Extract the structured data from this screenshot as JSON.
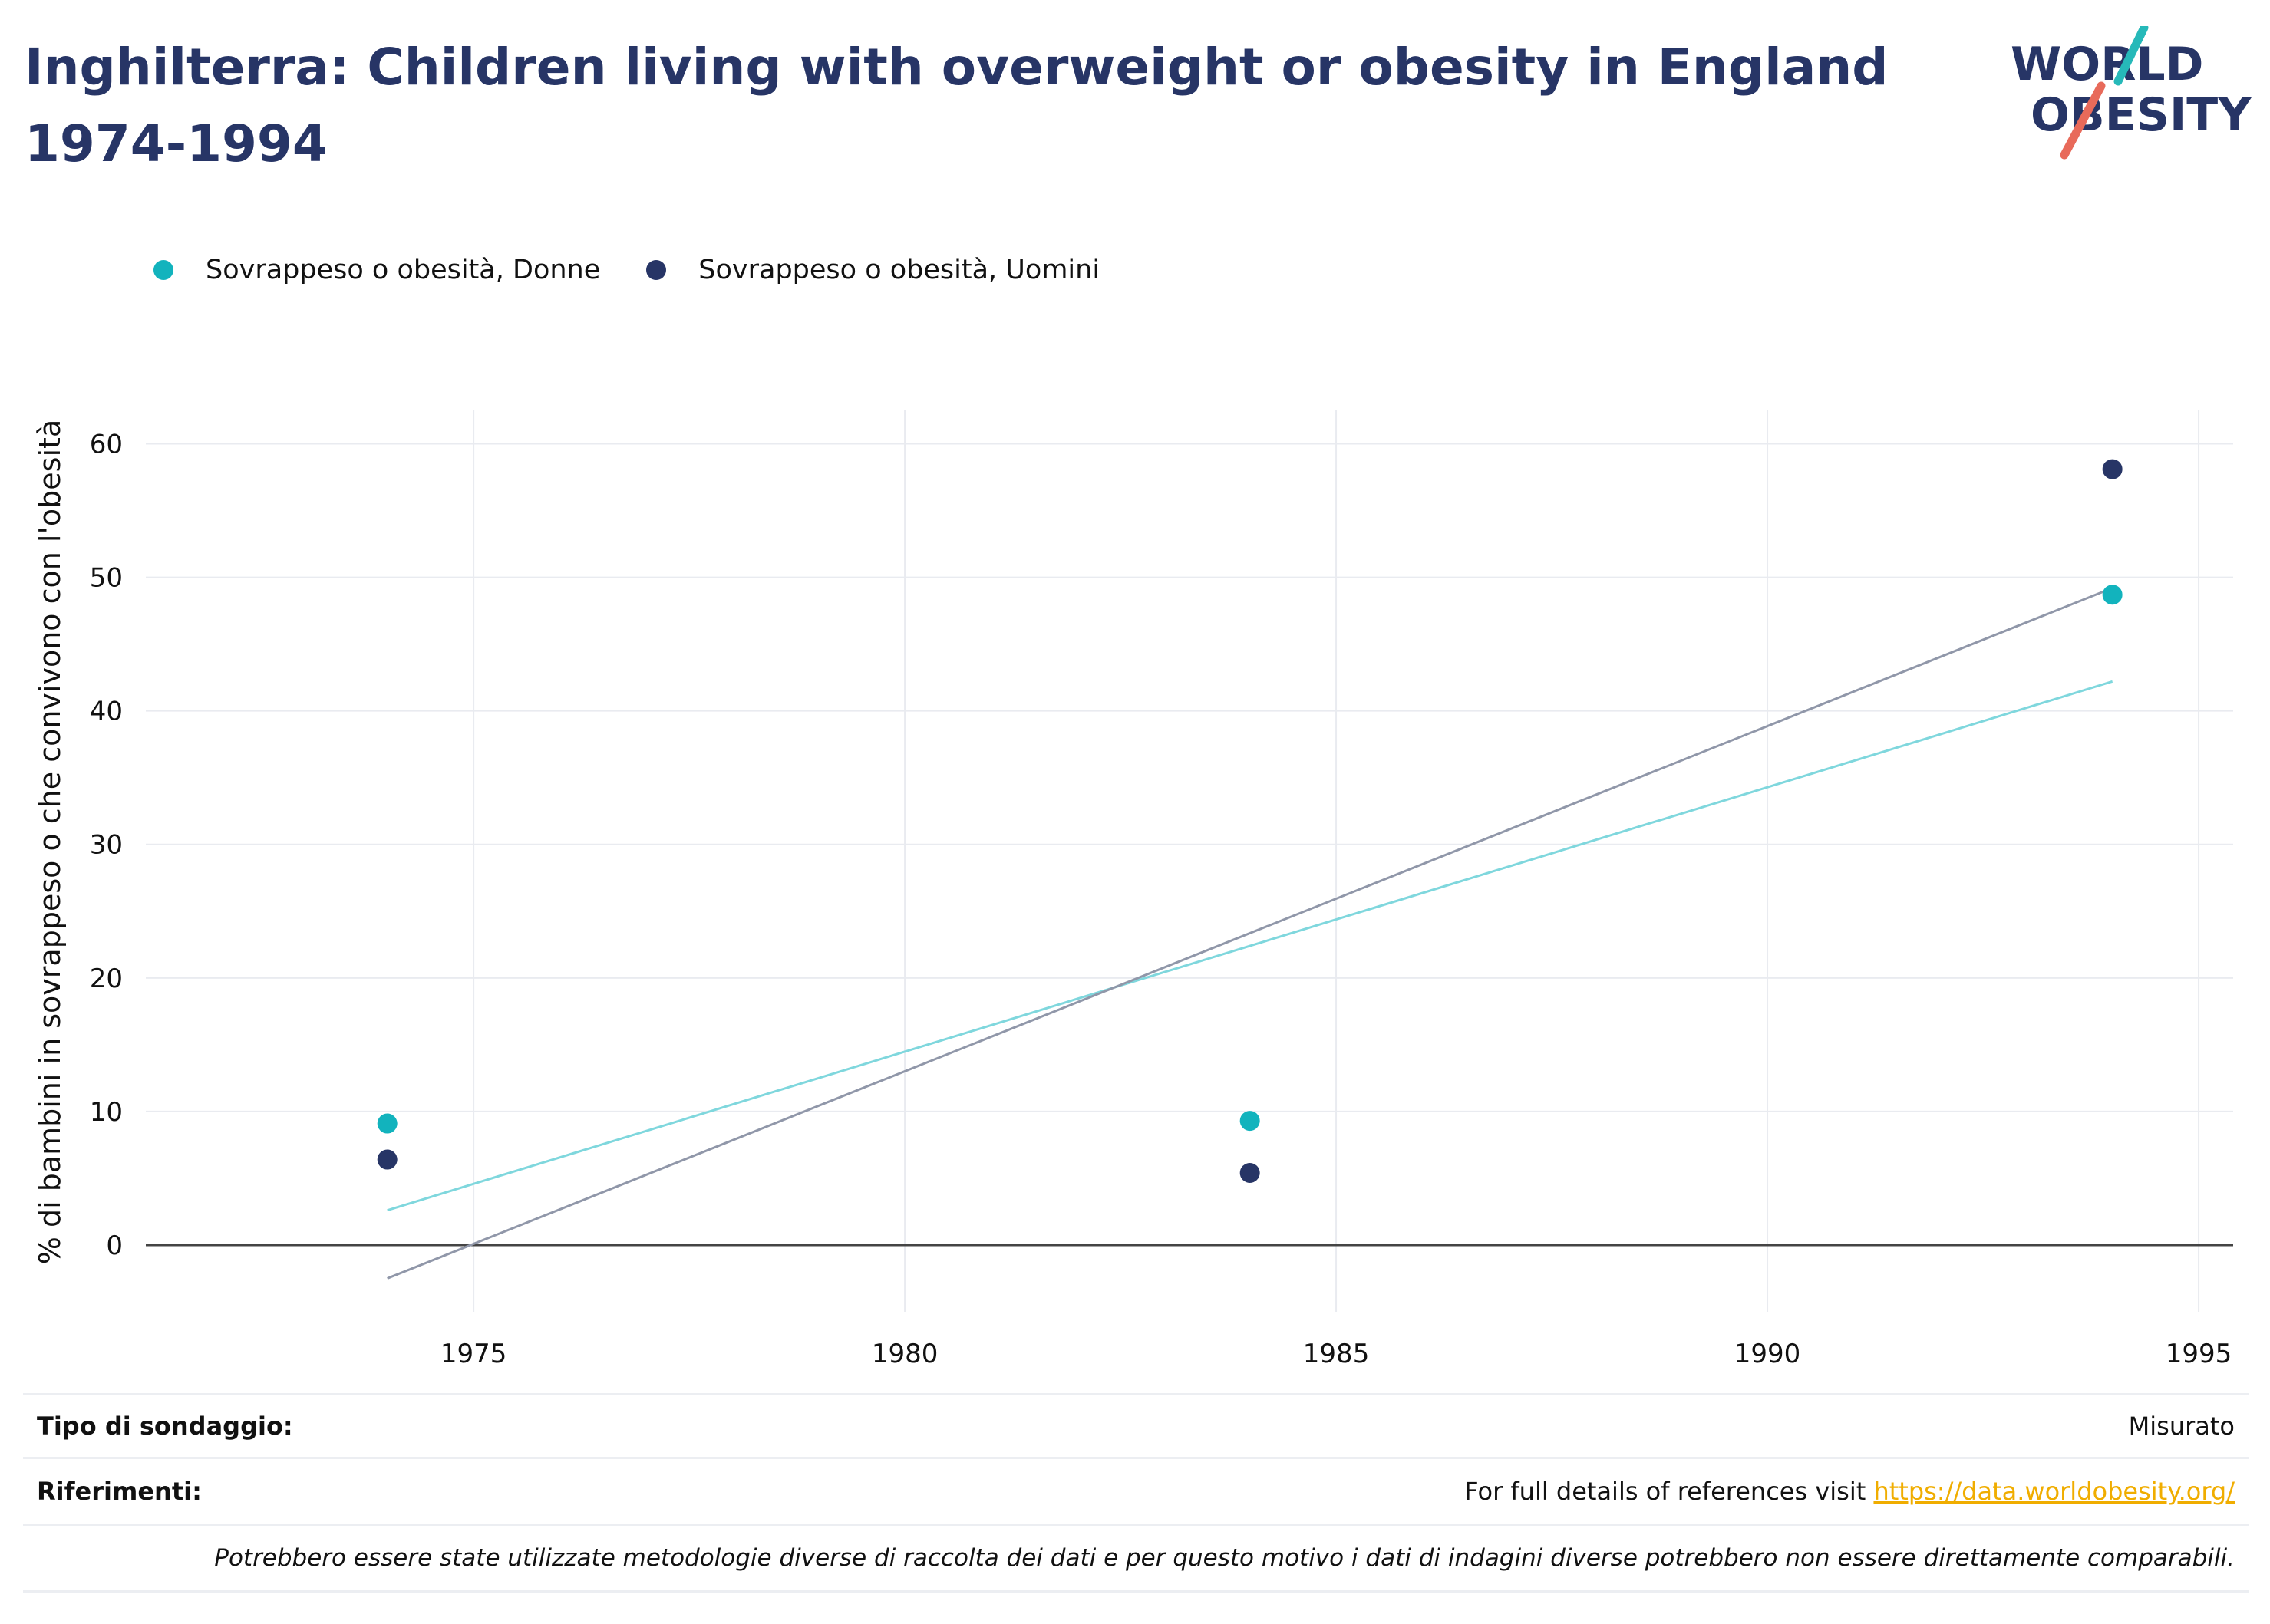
{
  "title": "Inghilterra: Children living with overweight or obesity in England 1974-1994",
  "logo": {
    "line1": "WORLD",
    "line2": "OBESITY",
    "accent_teal": "#26b9b9",
    "accent_coral": "#e86a5a",
    "text_color": "#273566"
  },
  "colors": {
    "female": "#12b3bd",
    "male": "#273566",
    "female_trend": "#7fd7dd",
    "male_trend": "#9097a9",
    "title": "#273566"
  },
  "legend": [
    {
      "label": "Sovrappeso o obesità, Donne",
      "color": "#12b3bd"
    },
    {
      "label": "Sovrappeso o obesità, Uomini",
      "color": "#273566"
    }
  ],
  "chart_data": {
    "type": "scatter",
    "ylabel": "% di bambini in sovrappeso o che convivono con l'obesità",
    "xlabel": "",
    "xlim": [
      1971.2,
      1995.4
    ],
    "ylim": [
      -5,
      62.5
    ],
    "xticks": [
      1975,
      1980,
      1985,
      1990,
      1995
    ],
    "yticks": [
      0,
      10,
      20,
      30,
      40,
      50,
      60
    ],
    "grid": true,
    "legend_position": "top-left",
    "series": [
      {
        "name": "Sovrappeso o obesità, Donne",
        "x": [
          1974,
          1984,
          1994
        ],
        "y": [
          9.1,
          9.3,
          48.7
        ],
        "trend": {
          "x": [
            1974,
            1994
          ],
          "y": [
            2.6,
            42.2
          ]
        }
      },
      {
        "name": "Sovrappeso o obesità, Uomini",
        "x": [
          1974,
          1984,
          1994
        ],
        "y": [
          6.4,
          5.4,
          58.1
        ],
        "trend": {
          "x": [
            1974,
            1994
          ],
          "y": [
            -2.5,
            49.2
          ]
        }
      }
    ]
  },
  "footer": {
    "survey_label": "Tipo di sondaggio:",
    "survey_value": "Misurato",
    "references_label": "Riferimenti:",
    "references_text": "For full details of references visit ",
    "references_link": "https://data.worldobesity.org/",
    "note": "Potrebbero essere state utilizzate metodologie diverse di raccolta dei dati e per questo motivo i dati di indagini diverse potrebbero non essere direttamente comparabili."
  }
}
